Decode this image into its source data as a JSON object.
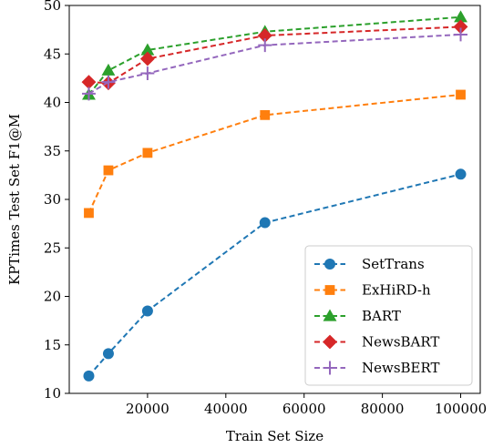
{
  "chart_data": {
    "type": "line",
    "title": "",
    "xlabel": "Train Set Size",
    "ylabel": "KPTimes Test Set F1@M",
    "xlim": [
      0,
      105000
    ],
    "ylim": [
      10,
      50
    ],
    "xticks": [
      20000,
      40000,
      60000,
      80000,
      100000
    ],
    "yticks": [
      10,
      15,
      20,
      25,
      30,
      35,
      40,
      45,
      50
    ],
    "grid": false,
    "legend_position": "lower-right",
    "x": [
      5000,
      10000,
      20000,
      50000,
      100000
    ],
    "series": [
      {
        "name": "SetTrans",
        "color": "#1f77b4",
        "marker": "circle",
        "values": [
          11.8,
          14.1,
          18.5,
          27.6,
          32.6
        ]
      },
      {
        "name": "ExHiRD-h",
        "color": "#ff7f0e",
        "marker": "square",
        "values": [
          28.6,
          33.0,
          34.8,
          38.7,
          40.8
        ]
      },
      {
        "name": "BART",
        "color": "#2ca02c",
        "marker": "triangle",
        "values": [
          40.8,
          43.3,
          45.4,
          47.3,
          48.8
        ]
      },
      {
        "name": "NewsBART",
        "color": "#d62728",
        "marker": "diamond",
        "values": [
          42.1,
          42.0,
          44.5,
          46.9,
          47.8
        ]
      },
      {
        "name": "NewsBERT",
        "color": "#9467bd",
        "marker": "plus",
        "values": [
          40.9,
          42.1,
          43.0,
          45.9,
          47.0
        ]
      }
    ]
  }
}
